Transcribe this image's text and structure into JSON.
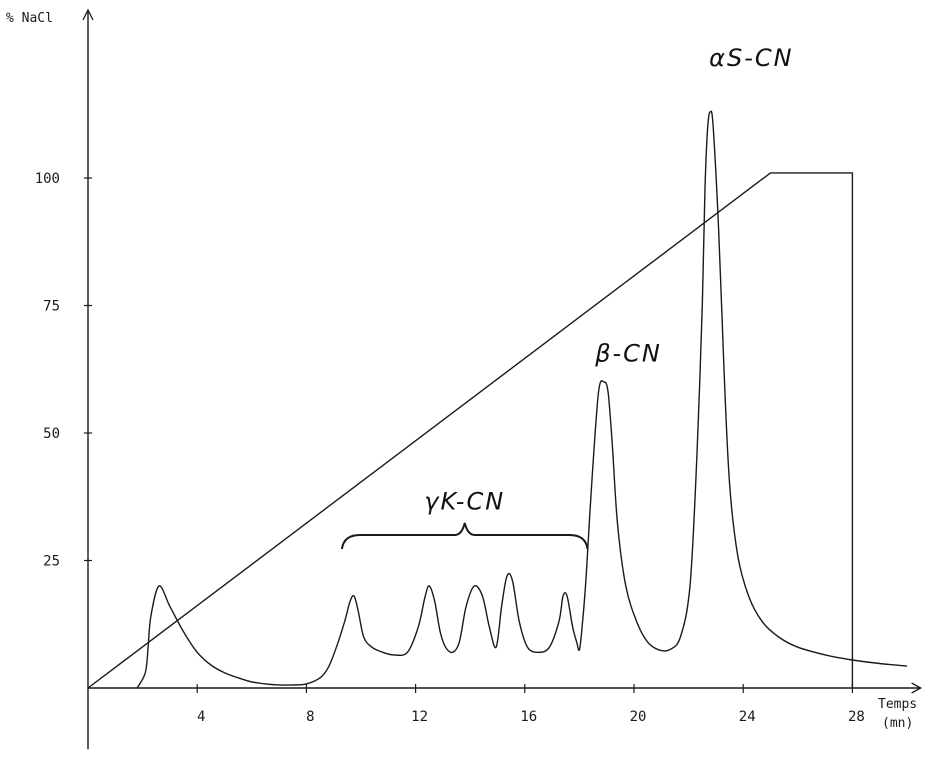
{
  "chart_data": {
    "type": "line",
    "ylabel": "% NaCl",
    "xlabel_line1": "Temps",
    "xlabel_line2": "(mn)",
    "x_ticks": [
      "4",
      "8",
      "12",
      "16",
      "20",
      "24",
      "28"
    ],
    "y_ticks": [
      "25",
      "50",
      "75",
      "100"
    ],
    "xlim": [
      0,
      30.5
    ],
    "ylim": [
      -12,
      118
    ],
    "grid": false,
    "legend": "none",
    "series": [
      {
        "role": "gradient",
        "x": [
          0,
          25,
          28,
          28
        ],
        "y": [
          0,
          101,
          101,
          0
        ]
      },
      {
        "role": "chromatogram",
        "x": [
          1.8,
          2.1,
          2.2,
          2.3,
          2.6,
          3.0,
          3.5,
          4.0,
          4.5,
          5.0,
          5.5,
          6.0,
          6.5,
          7.0,
          7.5,
          8.0,
          8.5,
          8.8,
          9.1,
          9.4,
          9.6,
          9.75,
          9.9,
          10.1,
          10.4,
          10.8,
          11.2,
          11.7,
          12.1,
          12.35,
          12.5,
          12.7,
          12.9,
          13.1,
          13.35,
          13.6,
          13.85,
          14.15,
          14.45,
          14.7,
          14.95,
          15.15,
          15.35,
          15.55,
          15.8,
          16.1,
          16.5,
          16.9,
          17.25,
          17.4,
          17.55,
          17.75,
          17.9,
          18.0,
          18.1,
          18.25,
          18.45,
          18.7,
          18.9,
          19.05,
          19.2,
          19.4,
          19.7,
          20.1,
          20.5,
          20.9,
          21.3,
          21.7,
          22.05,
          22.3,
          22.5,
          22.6,
          22.7,
          22.8,
          22.9,
          23.1,
          23.3,
          23.5,
          23.8,
          24.2,
          24.7,
          25.3,
          26.0,
          27.0,
          28.0,
          29.0,
          30.0
        ],
        "y": [
          0,
          3,
          8,
          14,
          20,
          16,
          11,
          7,
          4.5,
          3,
          2,
          1.2,
          0.8,
          0.6,
          0.6,
          0.8,
          2,
          4,
          8,
          13,
          17,
          18,
          15,
          10,
          8,
          7,
          6.5,
          7,
          12,
          18,
          20,
          17,
          11,
          8,
          7,
          9,
          16,
          20,
          18,
          12,
          8,
          16,
          22,
          21,
          13,
          8,
          7,
          8,
          13,
          18,
          18,
          12,
          9,
          7.5,
          12,
          22,
          40,
          58,
          60,
          58,
          48,
          32,
          20,
          13,
          9,
          7.5,
          7.5,
          10,
          20,
          45,
          75,
          98,
          110,
          113,
          110,
          90,
          62,
          40,
          26,
          18,
          13,
          10,
          8,
          6.5,
          5.5,
          4.8,
          4.3
        ]
      }
    ],
    "annotations": [
      {
        "text": "αS-CN",
        "x": 24.3,
        "y": 122
      },
      {
        "text": "β-CN",
        "x": 19.8,
        "y": 64
      },
      {
        "text": "γK-CN",
        "x": 13.8,
        "y": 35
      }
    ],
    "bracket": {
      "x_start": 9.3,
      "x_end": 18.3,
      "y": 30
    }
  }
}
